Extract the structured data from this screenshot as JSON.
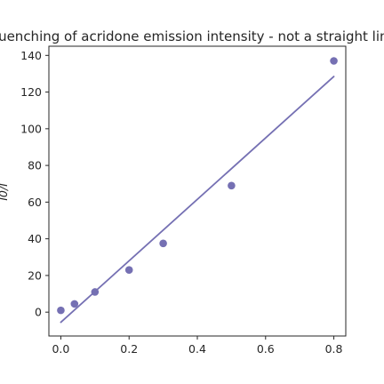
{
  "chart_data": {
    "type": "scatter",
    "title": "Quenching of acridone emission intensity - not a straight line",
    "xlabel": "",
    "ylabel": "I0/I",
    "xlim": [
      -0.035,
      0.835
    ],
    "ylim": [
      -13,
      145
    ],
    "xticks": [
      0.0,
      0.2,
      0.4,
      0.6,
      0.8
    ],
    "yticks": [
      0,
      20,
      40,
      60,
      80,
      100,
      120,
      140
    ],
    "xtick_labels": [
      "0.0",
      "0.2",
      "0.4",
      "0.6",
      "0.8"
    ],
    "ytick_labels": [
      "0",
      "20",
      "40",
      "60",
      "80",
      "100",
      "120",
      "140"
    ],
    "grid": false,
    "color": "#7570b3",
    "series": [
      {
        "kind": "points",
        "x": [
          0.0,
          0.04,
          0.1,
          0.2,
          0.3,
          0.5,
          0.8
        ],
        "y": [
          1,
          4.5,
          11,
          23,
          37.5,
          69,
          137
        ]
      },
      {
        "kind": "fit-line",
        "x": [
          0.0,
          0.8
        ],
        "y": [
          -5.5,
          128.5
        ]
      }
    ]
  }
}
